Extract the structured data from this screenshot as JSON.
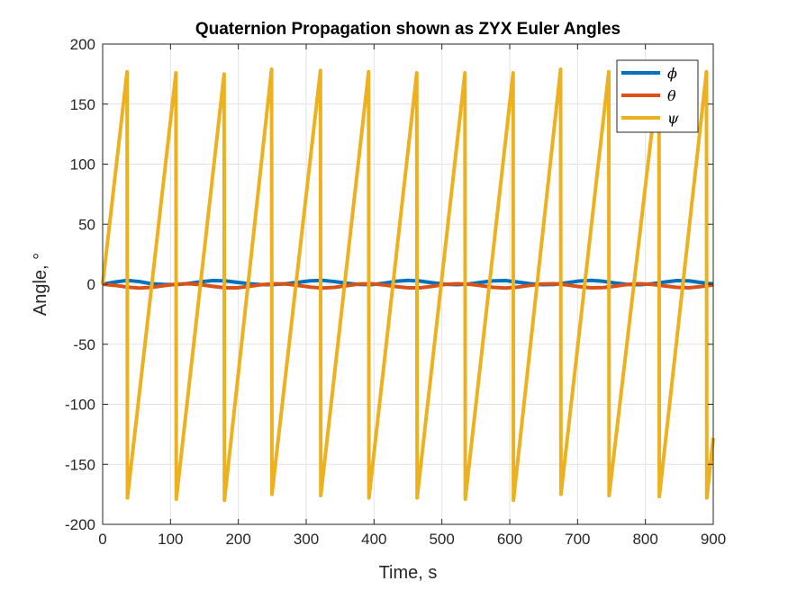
{
  "chart_data": {
    "type": "line",
    "title": "Quaternion Propagation shown as ZYX Euler Angles",
    "xlabel": "Time, s",
    "ylabel": "Angle, °",
    "xlim": [
      0,
      900
    ],
    "ylim": [
      -200,
      200
    ],
    "x_ticks": [
      0,
      100,
      200,
      300,
      400,
      500,
      600,
      700,
      800,
      900
    ],
    "y_ticks": [
      -200,
      -150,
      -100,
      -50,
      0,
      50,
      100,
      150,
      200
    ],
    "grid": true,
    "legend_position": "top-right",
    "series": [
      {
        "name": "ϕ",
        "color": "#0072BD",
        "points": [
          [
            0,
            0
          ],
          [
            18,
            1.8
          ],
          [
            36,
            3.2
          ],
          [
            54,
            2.2
          ],
          [
            72,
            0.4
          ],
          [
            90,
            -0.2
          ],
          [
            108,
            -0.4
          ],
          [
            126,
            0.6
          ],
          [
            144,
            2.0
          ],
          [
            162,
            3.0
          ],
          [
            180,
            2.8
          ],
          [
            198,
            1.6
          ],
          [
            216,
            0.4
          ],
          [
            234,
            -0.4
          ],
          [
            252,
            -0.3
          ],
          [
            270,
            0.4
          ],
          [
            288,
            1.6
          ],
          [
            306,
            2.8
          ],
          [
            324,
            3.2
          ],
          [
            342,
            2.2
          ],
          [
            360,
            0.8
          ],
          [
            378,
            -0.2
          ],
          [
            396,
            -0.4
          ],
          [
            414,
            0.8
          ],
          [
            432,
            2.4
          ],
          [
            450,
            3.2
          ],
          [
            468,
            2.6
          ],
          [
            486,
            1.2
          ],
          [
            504,
            0
          ],
          [
            522,
            -0.4
          ],
          [
            540,
            0.2
          ],
          [
            558,
            1.6
          ],
          [
            576,
            2.8
          ],
          [
            594,
            3.0
          ],
          [
            612,
            1.8
          ],
          [
            630,
            0.4
          ],
          [
            648,
            -0.4
          ],
          [
            666,
            -0.2
          ],
          [
            684,
            1.2
          ],
          [
            702,
            2.6
          ],
          [
            720,
            3.2
          ],
          [
            738,
            2.4
          ],
          [
            756,
            1.0
          ],
          [
            774,
            -0.2
          ],
          [
            792,
            -0.4
          ],
          [
            810,
            0.4
          ],
          [
            828,
            1.8
          ],
          [
            846,
            3.0
          ],
          [
            864,
            2.8
          ],
          [
            882,
            1.4
          ],
          [
            900,
            0.2
          ]
        ]
      },
      {
        "name": "θ",
        "color": "#D95319",
        "points": [
          [
            0,
            0
          ],
          [
            18,
            -1.0
          ],
          [
            36,
            -2.4
          ],
          [
            54,
            -3.2
          ],
          [
            72,
            -2.6
          ],
          [
            90,
            -1.2
          ],
          [
            108,
            0
          ],
          [
            126,
            0.4
          ],
          [
            144,
            -0.4
          ],
          [
            162,
            -1.8
          ],
          [
            180,
            -3.0
          ],
          [
            198,
            -3.0
          ],
          [
            216,
            -1.8
          ],
          [
            234,
            -0.4
          ],
          [
            252,
            0.4
          ],
          [
            270,
            0.2
          ],
          [
            288,
            -1.0
          ],
          [
            306,
            -2.4
          ],
          [
            324,
            -3.2
          ],
          [
            342,
            -2.6
          ],
          [
            360,
            -1.2
          ],
          [
            378,
            0.2
          ],
          [
            396,
            0.4
          ],
          [
            414,
            -0.6
          ],
          [
            432,
            -2.0
          ],
          [
            450,
            -3.0
          ],
          [
            468,
            -3.0
          ],
          [
            486,
            -1.8
          ],
          [
            504,
            -0.2
          ],
          [
            522,
            0.4
          ],
          [
            540,
            0
          ],
          [
            558,
            -1.2
          ],
          [
            576,
            -2.6
          ],
          [
            594,
            -3.2
          ],
          [
            612,
            -2.4
          ],
          [
            630,
            -1.0
          ],
          [
            648,
            0.2
          ],
          [
            666,
            0.4
          ],
          [
            684,
            -0.6
          ],
          [
            702,
            -2.0
          ],
          [
            720,
            -3.0
          ],
          [
            738,
            -2.8
          ],
          [
            756,
            -1.6
          ],
          [
            774,
            -0.2
          ],
          [
            792,
            0.4
          ],
          [
            810,
            -0.2
          ],
          [
            828,
            -1.4
          ],
          [
            846,
            -2.6
          ],
          [
            864,
            -3.0
          ],
          [
            882,
            -2.0
          ],
          [
            900,
            -0.6
          ]
        ]
      },
      {
        "name": "ψ",
        "color": "#EDB120",
        "points": [
          [
            0,
            0
          ],
          [
            36,
            177
          ],
          [
            36.5,
            -178
          ],
          [
            108,
            176
          ],
          [
            108.5,
            -179
          ],
          [
            179,
            175
          ],
          [
            179.5,
            -180
          ],
          [
            249,
            179
          ],
          [
            249.5,
            -175
          ],
          [
            321,
            178
          ],
          [
            321.5,
            -176
          ],
          [
            392,
            177
          ],
          [
            392.5,
            -178
          ],
          [
            463,
            176
          ],
          [
            463.5,
            -178
          ],
          [
            534,
            176
          ],
          [
            534.5,
            -179
          ],
          [
            605,
            176
          ],
          [
            605.5,
            -180
          ],
          [
            675,
            179
          ],
          [
            675.5,
            -175
          ],
          [
            746,
            177
          ],
          [
            746.5,
            -176
          ],
          [
            820,
            178
          ],
          [
            820.5,
            -177
          ],
          [
            890,
            177
          ],
          [
            890.5,
            -178
          ],
          [
            900,
            -128
          ]
        ]
      }
    ]
  }
}
